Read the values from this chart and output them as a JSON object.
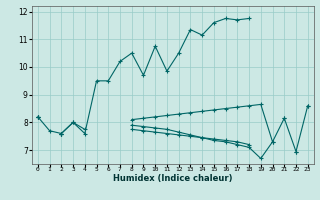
{
  "title": "",
  "xlabel": "Humidex (Indice chaleur)",
  "ylabel": "",
  "background_color": "#cce8e4",
  "grid_color": "#99ccc8",
  "line_color": "#006666",
  "xlim": [
    -0.5,
    23.5
  ],
  "ylim": [
    6.5,
    12.2
  ],
  "yticks": [
    7,
    8,
    9,
    10,
    11,
    12
  ],
  "xtick_labels": [
    "0",
    "1",
    "2",
    "3",
    "4",
    "5",
    "6",
    "7",
    "8",
    "9",
    "10",
    "11",
    "12",
    "13",
    "14",
    "15",
    "16",
    "17",
    "18",
    "19",
    "20",
    "21",
    "22",
    "23"
  ],
  "series1": [
    8.2,
    7.7,
    7.6,
    8.0,
    7.6,
    9.5,
    9.5,
    10.2,
    10.5,
    9.7,
    10.75,
    9.85,
    10.5,
    11.35,
    11.15,
    11.6,
    11.75,
    11.7,
    11.75,
    null,
    null,
    8.15,
    null,
    8.6
  ],
  "series2": [
    8.2,
    null,
    7.6,
    null,
    null,
    null,
    null,
    null,
    8.1,
    8.15,
    8.2,
    8.25,
    8.3,
    8.35,
    8.4,
    8.45,
    8.5,
    8.55,
    8.6,
    8.65,
    7.3,
    8.15,
    6.95,
    8.6
  ],
  "series3": [
    8.2,
    null,
    7.6,
    null,
    null,
    null,
    null,
    null,
    7.9,
    7.85,
    7.8,
    7.75,
    7.65,
    7.55,
    7.45,
    7.35,
    7.3,
    7.2,
    7.1,
    6.7,
    7.3,
    null,
    6.95,
    null
  ],
  "series4": [
    8.2,
    null,
    7.6,
    8.0,
    7.75,
    null,
    null,
    null,
    7.75,
    7.7,
    7.65,
    7.6,
    7.55,
    7.5,
    7.45,
    7.4,
    7.35,
    7.3,
    7.2,
    null,
    null,
    null,
    null,
    null
  ]
}
